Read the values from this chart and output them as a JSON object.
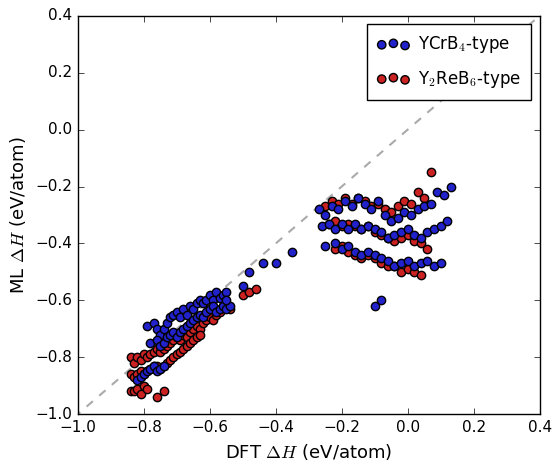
{
  "xlabel": "DFT $\\Delta H$ (eV/atom)",
  "ylabel": "ML $\\Delta H$ (eV/atom)",
  "xlim": [
    -1.0,
    0.4
  ],
  "ylim": [
    -1.0,
    0.4
  ],
  "xticks": [
    -1.0,
    -0.8,
    -0.6,
    -0.4,
    -0.2,
    0.0,
    0.2,
    0.4
  ],
  "yticks": [
    -1.0,
    -0.8,
    -0.6,
    -0.4,
    -0.2,
    0.0,
    0.2,
    0.4
  ],
  "diagonal_color": "#aaaaaa",
  "blue_label": "YCrB$_4$-type",
  "red_label": "Y$_2$ReB$_6$-type",
  "blue_color": "#2222cc",
  "red_color": "#cc2222",
  "marker_size": 36,
  "blue_points": [
    [
      -0.79,
      -0.69
    ],
    [
      -0.77,
      -0.68
    ],
    [
      -0.76,
      -0.7
    ],
    [
      -0.75,
      -0.72
    ],
    [
      -0.74,
      -0.7
    ],
    [
      -0.73,
      -0.68
    ],
    [
      -0.72,
      -0.66
    ],
    [
      -0.71,
      -0.65
    ],
    [
      -0.7,
      -0.64
    ],
    [
      -0.69,
      -0.66
    ],
    [
      -0.68,
      -0.63
    ],
    [
      -0.67,
      -0.65
    ],
    [
      -0.66,
      -0.62
    ],
    [
      -0.65,
      -0.63
    ],
    [
      -0.64,
      -0.61
    ],
    [
      -0.63,
      -0.6
    ],
    [
      -0.62,
      -0.61
    ],
    [
      -0.61,
      -0.6
    ],
    [
      -0.6,
      -0.58
    ],
    [
      -0.59,
      -0.6
    ],
    [
      -0.58,
      -0.57
    ],
    [
      -0.57,
      -0.59
    ],
    [
      -0.56,
      -0.58
    ],
    [
      -0.55,
      -0.57
    ],
    [
      -0.78,
      -0.75
    ],
    [
      -0.76,
      -0.74
    ],
    [
      -0.75,
      -0.76
    ],
    [
      -0.74,
      -0.75
    ],
    [
      -0.73,
      -0.73
    ],
    [
      -0.72,
      -0.72
    ],
    [
      -0.71,
      -0.71
    ],
    [
      -0.7,
      -0.73
    ],
    [
      -0.69,
      -0.71
    ],
    [
      -0.68,
      -0.7
    ],
    [
      -0.67,
      -0.69
    ],
    [
      -0.66,
      -0.68
    ],
    [
      -0.65,
      -0.67
    ],
    [
      -0.64,
      -0.66
    ],
    [
      -0.63,
      -0.65
    ],
    [
      -0.62,
      -0.66
    ],
    [
      -0.61,
      -0.64
    ],
    [
      -0.6,
      -0.63
    ],
    [
      -0.59,
      -0.62
    ],
    [
      -0.58,
      -0.64
    ],
    [
      -0.57,
      -0.63
    ],
    [
      -0.56,
      -0.62
    ],
    [
      -0.55,
      -0.63
    ],
    [
      -0.54,
      -0.62
    ],
    [
      -0.82,
      -0.88
    ],
    [
      -0.81,
      -0.87
    ],
    [
      -0.8,
      -0.86
    ],
    [
      -0.79,
      -0.85
    ],
    [
      -0.78,
      -0.84
    ],
    [
      -0.77,
      -0.83
    ],
    [
      -0.76,
      -0.85
    ],
    [
      -0.75,
      -0.84
    ],
    [
      -0.74,
      -0.83
    ],
    [
      -0.48,
      -0.5
    ],
    [
      -0.44,
      -0.47
    ],
    [
      -0.27,
      -0.28
    ],
    [
      -0.25,
      -0.3
    ],
    [
      -0.23,
      -0.27
    ],
    [
      -0.21,
      -0.28
    ],
    [
      -0.19,
      -0.25
    ],
    [
      -0.17,
      -0.27
    ],
    [
      -0.15,
      -0.24
    ],
    [
      -0.13,
      -0.26
    ],
    [
      -0.11,
      -0.28
    ],
    [
      -0.09,
      -0.25
    ],
    [
      -0.07,
      -0.3
    ],
    [
      -0.05,
      -0.32
    ],
    [
      -0.03,
      -0.31
    ],
    [
      -0.01,
      -0.29
    ],
    [
      0.01,
      -0.3
    ],
    [
      0.03,
      -0.28
    ],
    [
      0.05,
      -0.27
    ],
    [
      0.07,
      -0.26
    ],
    [
      0.09,
      -0.22
    ],
    [
      0.11,
      -0.23
    ],
    [
      0.13,
      -0.2
    ],
    [
      -0.26,
      -0.34
    ],
    [
      -0.24,
      -0.33
    ],
    [
      -0.22,
      -0.35
    ],
    [
      -0.2,
      -0.33
    ],
    [
      -0.18,
      -0.35
    ],
    [
      -0.16,
      -0.33
    ],
    [
      -0.14,
      -0.35
    ],
    [
      -0.12,
      -0.34
    ],
    [
      -0.1,
      -0.35
    ],
    [
      -0.08,
      -0.36
    ],
    [
      -0.06,
      -0.38
    ],
    [
      -0.04,
      -0.37
    ],
    [
      -0.02,
      -0.36
    ],
    [
      0.0,
      -0.35
    ],
    [
      0.02,
      -0.37
    ],
    [
      0.04,
      -0.38
    ],
    [
      0.06,
      -0.36
    ],
    [
      0.08,
      -0.35
    ],
    [
      0.1,
      -0.34
    ],
    [
      0.12,
      -0.32
    ],
    [
      -0.25,
      -0.41
    ],
    [
      -0.22,
      -0.4
    ],
    [
      -0.2,
      -0.42
    ],
    [
      -0.18,
      -0.41
    ],
    [
      -0.16,
      -0.43
    ],
    [
      -0.14,
      -0.44
    ],
    [
      -0.12,
      -0.43
    ],
    [
      -0.1,
      -0.44
    ],
    [
      -0.08,
      -0.45
    ],
    [
      -0.06,
      -0.46
    ],
    [
      -0.04,
      -0.48
    ],
    [
      -0.02,
      -0.47
    ],
    [
      0.0,
      -0.46
    ],
    [
      0.02,
      -0.48
    ],
    [
      0.04,
      -0.47
    ],
    [
      0.06,
      -0.46
    ],
    [
      0.08,
      -0.48
    ],
    [
      0.1,
      -0.47
    ],
    [
      -0.55,
      -0.6
    ],
    [
      -0.5,
      -0.55
    ],
    [
      -0.4,
      -0.47
    ],
    [
      -0.35,
      -0.43
    ],
    [
      -0.1,
      -0.62
    ],
    [
      -0.08,
      -0.6
    ]
  ],
  "red_points": [
    [
      -0.84,
      -0.8
    ],
    [
      -0.83,
      -0.82
    ],
    [
      -0.82,
      -0.8
    ],
    [
      -0.81,
      -0.81
    ],
    [
      -0.8,
      -0.79
    ],
    [
      -0.79,
      -0.8
    ],
    [
      -0.78,
      -0.79
    ],
    [
      -0.77,
      -0.78
    ],
    [
      -0.76,
      -0.77
    ],
    [
      -0.75,
      -0.78
    ],
    [
      -0.74,
      -0.77
    ],
    [
      -0.73,
      -0.76
    ],
    [
      -0.72,
      -0.75
    ],
    [
      -0.71,
      -0.74
    ],
    [
      -0.7,
      -0.73
    ],
    [
      -0.69,
      -0.74
    ],
    [
      -0.68,
      -0.72
    ],
    [
      -0.67,
      -0.73
    ],
    [
      -0.66,
      -0.71
    ],
    [
      -0.65,
      -0.7
    ],
    [
      -0.64,
      -0.69
    ],
    [
      -0.63,
      -0.7
    ],
    [
      -0.62,
      -0.68
    ],
    [
      -0.61,
      -0.67
    ],
    [
      -0.6,
      -0.66
    ],
    [
      -0.59,
      -0.67
    ],
    [
      -0.58,
      -0.65
    ],
    [
      -0.57,
      -0.64
    ],
    [
      -0.84,
      -0.86
    ],
    [
      -0.83,
      -0.87
    ],
    [
      -0.82,
      -0.86
    ],
    [
      -0.81,
      -0.85
    ],
    [
      -0.8,
      -0.86
    ],
    [
      -0.79,
      -0.85
    ],
    [
      -0.78,
      -0.84
    ],
    [
      -0.77,
      -0.83
    ],
    [
      -0.76,
      -0.83
    ],
    [
      -0.75,
      -0.84
    ],
    [
      -0.74,
      -0.83
    ],
    [
      -0.73,
      -0.82
    ],
    [
      -0.72,
      -0.81
    ],
    [
      -0.71,
      -0.8
    ],
    [
      -0.7,
      -0.79
    ],
    [
      -0.69,
      -0.78
    ],
    [
      -0.68,
      -0.77
    ],
    [
      -0.67,
      -0.76
    ],
    [
      -0.66,
      -0.75
    ],
    [
      -0.65,
      -0.74
    ],
    [
      -0.64,
      -0.73
    ],
    [
      -0.63,
      -0.72
    ],
    [
      -0.84,
      -0.92
    ],
    [
      -0.83,
      -0.92
    ],
    [
      -0.82,
      -0.91
    ],
    [
      -0.81,
      -0.93
    ],
    [
      -0.8,
      -0.9
    ],
    [
      -0.79,
      -0.91
    ],
    [
      -0.76,
      -0.94
    ],
    [
      -0.74,
      -0.92
    ],
    [
      -0.25,
      -0.27
    ],
    [
      -0.23,
      -0.25
    ],
    [
      -0.21,
      -0.26
    ],
    [
      -0.19,
      -0.24
    ],
    [
      -0.17,
      -0.26
    ],
    [
      -0.15,
      -0.24
    ],
    [
      -0.13,
      -0.25
    ],
    [
      -0.11,
      -0.27
    ],
    [
      -0.09,
      -0.26
    ],
    [
      -0.07,
      -0.28
    ],
    [
      -0.05,
      -0.29
    ],
    [
      -0.03,
      -0.27
    ],
    [
      -0.01,
      -0.25
    ],
    [
      0.01,
      -0.26
    ],
    [
      0.03,
      -0.22
    ],
    [
      0.05,
      -0.24
    ],
    [
      0.07,
      -0.15
    ],
    [
      -0.24,
      -0.33
    ],
    [
      -0.22,
      -0.32
    ],
    [
      -0.2,
      -0.34
    ],
    [
      -0.18,
      -0.33
    ],
    [
      -0.16,
      -0.34
    ],
    [
      -0.14,
      -0.35
    ],
    [
      -0.12,
      -0.34
    ],
    [
      -0.1,
      -0.36
    ],
    [
      -0.08,
      -0.37
    ],
    [
      -0.06,
      -0.38
    ],
    [
      -0.04,
      -0.39
    ],
    [
      -0.02,
      -0.38
    ],
    [
      0.0,
      -0.37
    ],
    [
      0.02,
      -0.39
    ],
    [
      0.04,
      -0.4
    ],
    [
      0.06,
      -0.42
    ],
    [
      -0.22,
      -0.42
    ],
    [
      -0.2,
      -0.41
    ],
    [
      -0.18,
      -0.43
    ],
    [
      -0.16,
      -0.44
    ],
    [
      -0.14,
      -0.45
    ],
    [
      -0.12,
      -0.44
    ],
    [
      -0.1,
      -0.45
    ],
    [
      -0.08,
      -0.47
    ],
    [
      -0.06,
      -0.48
    ],
    [
      -0.04,
      -0.48
    ],
    [
      -0.02,
      -0.5
    ],
    [
      0.0,
      -0.49
    ],
    [
      0.02,
      -0.5
    ],
    [
      0.04,
      -0.51
    ],
    [
      -0.5,
      -0.58
    ],
    [
      -0.48,
      -0.57
    ],
    [
      -0.46,
      -0.56
    ],
    [
      -0.56,
      -0.62
    ],
    [
      -0.54,
      -0.63
    ]
  ]
}
